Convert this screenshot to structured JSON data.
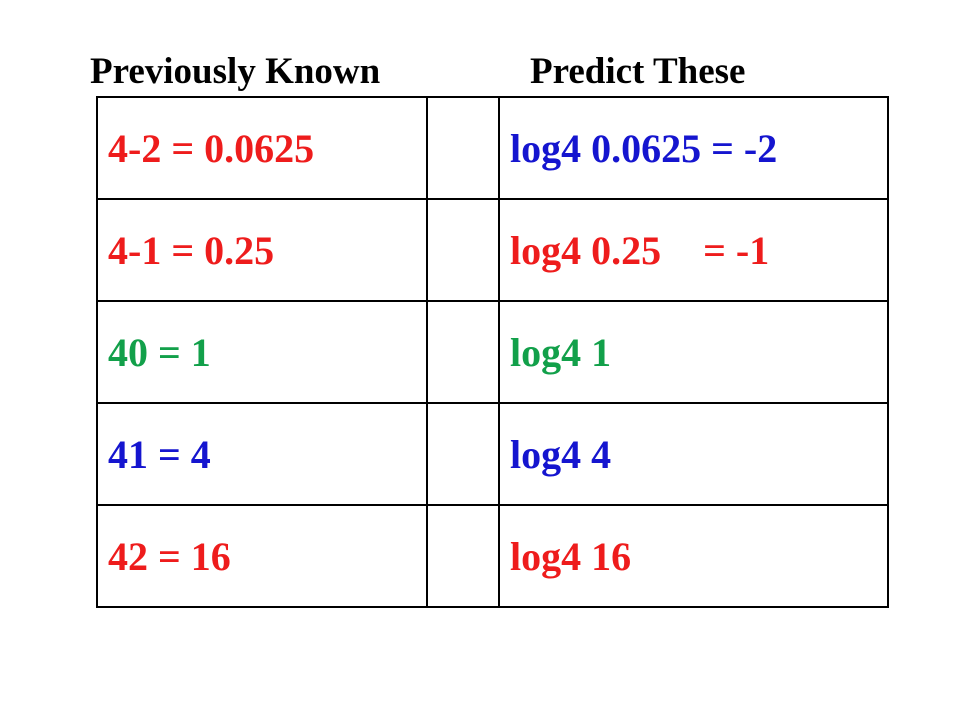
{
  "header": {
    "left": "Previously Known",
    "right": "Predict These"
  },
  "colors": {
    "red": "#ee1c1c",
    "blue": "#1515cf",
    "green": "#12a04a"
  },
  "rows": [
    {
      "known": "4-2 = 0.0625",
      "known_color": "red",
      "predict_main": "log4 0.0625 = -2",
      "predict_suffix": "",
      "predict_color": "blue"
    },
    {
      "known": "4-1 = 0.25",
      "known_color": "red",
      "predict_main": "log4 0.25",
      "predict_suffix": "= -1",
      "predict_color": "red"
    },
    {
      "known": "40 = 1",
      "known_color": "green",
      "predict_main": "log4 1",
      "predict_suffix": "",
      "predict_color": "green"
    },
    {
      "known": "41 = 4",
      "known_color": "blue",
      "predict_main": "log4 4",
      "predict_suffix": "",
      "predict_color": "blue"
    },
    {
      "known": "42 = 16",
      "known_color": "red",
      "predict_main": "log4 16",
      "predict_suffix": "",
      "predict_color": "red"
    }
  ]
}
